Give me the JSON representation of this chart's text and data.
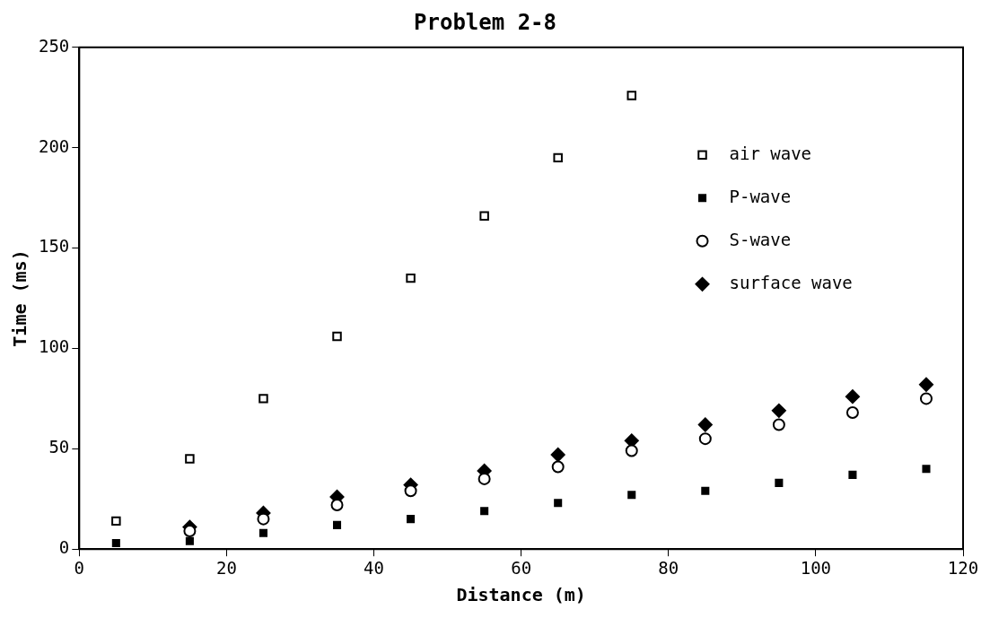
{
  "chart_data": {
    "type": "scatter",
    "title": "Problem 2-8",
    "xlabel": "Distance (m)",
    "ylabel": "Time (ms)",
    "xlim": [
      0,
      120
    ],
    "xticks": [
      0,
      20,
      40,
      60,
      80,
      100,
      120
    ],
    "ylim": [
      0,
      250
    ],
    "yticks": [
      0,
      50,
      100,
      150,
      200,
      250
    ],
    "grid": false,
    "legend": "top right",
    "series": [
      {
        "name": "air wave",
        "color": "#000000",
        "marker": "square",
        "x": [
          5,
          15,
          25,
          35,
          45,
          55,
          65,
          75
        ],
        "values": [
          14,
          45,
          75,
          106,
          135,
          166,
          195,
          226
        ]
      },
      {
        "name": "P-wave",
        "color": "#000000",
        "marker": "square",
        "x": [
          5,
          15,
          25,
          35,
          45,
          55,
          65,
          75,
          85,
          95,
          105,
          115
        ],
        "values": [
          3,
          4,
          8,
          12,
          15,
          19,
          23,
          27,
          29,
          33,
          37,
          40
        ]
      },
      {
        "name": "S-wave",
        "color": "#000000",
        "marker": "circle",
        "x": [
          15,
          25,
          35,
          45,
          55,
          65,
          75,
          85,
          95,
          105,
          115
        ],
        "values": [
          9,
          15,
          22,
          29,
          35,
          41,
          49,
          55,
          62,
          68,
          75
        ]
      },
      {
        "name": "surface wave",
        "color": "#000000",
        "marker": "diamond",
        "x": [
          15,
          25,
          35,
          45,
          55,
          65,
          75,
          85,
          95,
          105,
          115
        ],
        "values": [
          11,
          18,
          26,
          32,
          39,
          47,
          54,
          62,
          69,
          76,
          82
        ]
      }
    ]
  }
}
